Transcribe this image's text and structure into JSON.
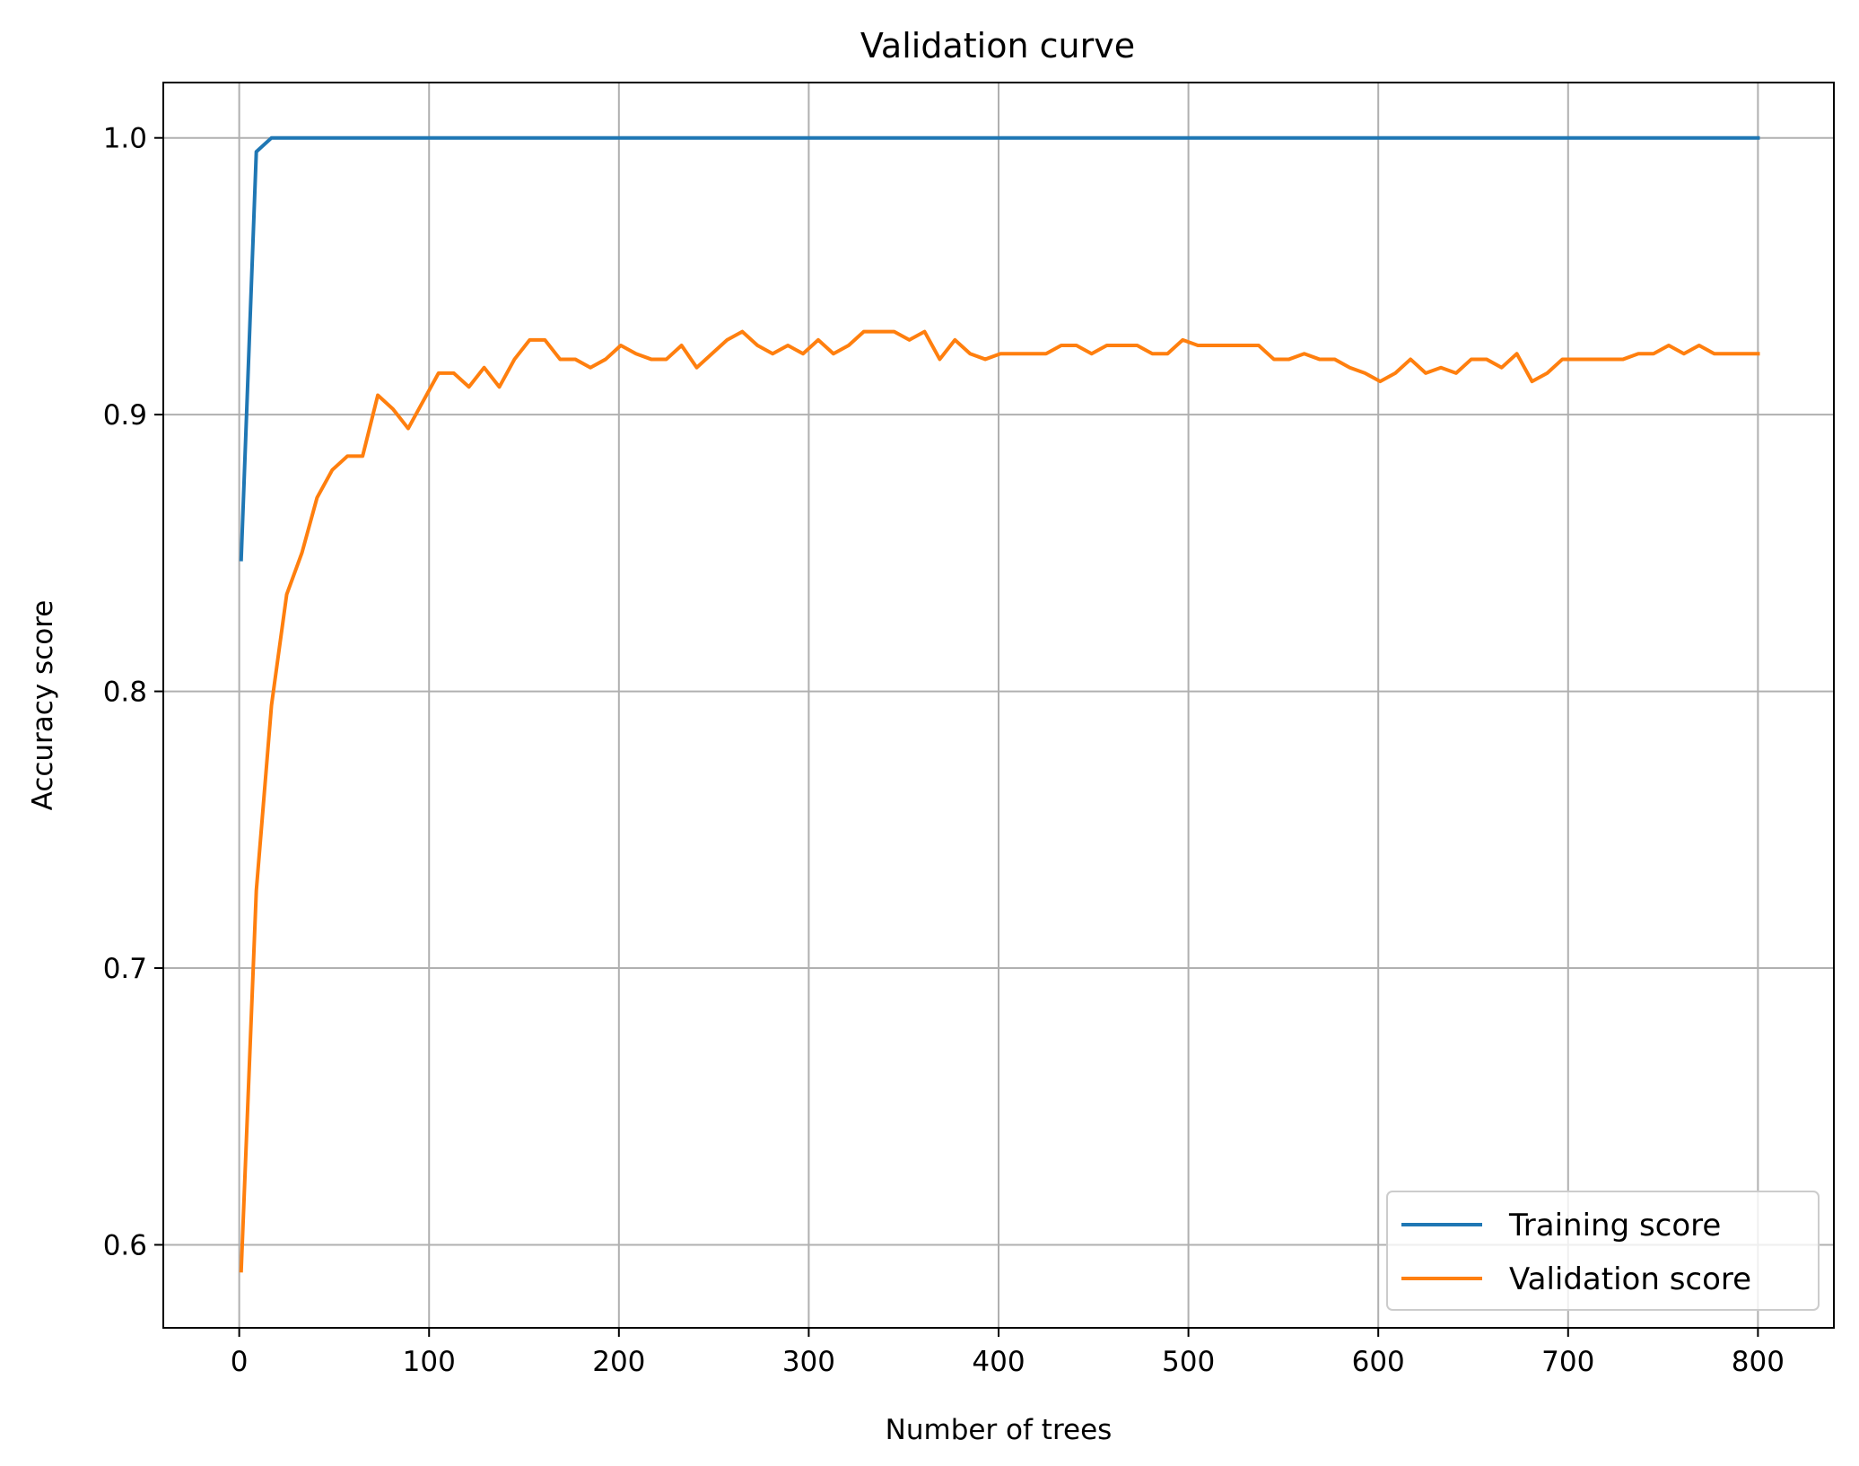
{
  "chart_data": {
    "type": "line",
    "title": "Validation curve",
    "xlabel": "Number of trees",
    "ylabel": "Accuracy score",
    "xlim": [
      -40,
      840
    ],
    "ylim": [
      0.57,
      1.02
    ],
    "xticks": [
      0,
      100,
      200,
      300,
      400,
      500,
      600,
      700,
      800
    ],
    "xtick_labels": [
      "0",
      "100",
      "200",
      "300",
      "400",
      "500",
      "600",
      "700",
      "800"
    ],
    "yticks": [
      0.6,
      0.7,
      0.8,
      0.9,
      1.0
    ],
    "ytick_labels": [
      "0.6",
      "0.7",
      "0.8",
      "0.9",
      "1.0"
    ],
    "grid": true,
    "legend_position": "bottom-right",
    "x": [
      1,
      9,
      17,
      25,
      33,
      41,
      49,
      57,
      65,
      73,
      81,
      89,
      97,
      105,
      113,
      121,
      129,
      137,
      145,
      153,
      161,
      169,
      177,
      185,
      193,
      201,
      209,
      217,
      225,
      233,
      241,
      249,
      257,
      265,
      273,
      281,
      289,
      297,
      305,
      313,
      321,
      329,
      337,
      345,
      353,
      361,
      369,
      377,
      385,
      393,
      401,
      409,
      417,
      425,
      433,
      441,
      449,
      457,
      465,
      473,
      481,
      489,
      497,
      505,
      513,
      521,
      529,
      537,
      545,
      553,
      561,
      569,
      577,
      585,
      593,
      601,
      609,
      617,
      625,
      633,
      641,
      649,
      657,
      665,
      673,
      681,
      689,
      697,
      705,
      713,
      721,
      729,
      737,
      745,
      753,
      761,
      769,
      777,
      785,
      793,
      801
    ],
    "series": [
      {
        "name": "Training score",
        "color": "#1f77b4",
        "values": [
          0.847,
          0.995,
          1.0,
          1.0,
          1.0,
          1.0,
          1.0,
          1.0,
          1.0,
          1.0,
          1.0,
          1.0,
          1.0,
          1.0,
          1.0,
          1.0,
          1.0,
          1.0,
          1.0,
          1.0,
          1.0,
          1.0,
          1.0,
          1.0,
          1.0,
          1.0,
          1.0,
          1.0,
          1.0,
          1.0,
          1.0,
          1.0,
          1.0,
          1.0,
          1.0,
          1.0,
          1.0,
          1.0,
          1.0,
          1.0,
          1.0,
          1.0,
          1.0,
          1.0,
          1.0,
          1.0,
          1.0,
          1.0,
          1.0,
          1.0,
          1.0,
          1.0,
          1.0,
          1.0,
          1.0,
          1.0,
          1.0,
          1.0,
          1.0,
          1.0,
          1.0,
          1.0,
          1.0,
          1.0,
          1.0,
          1.0,
          1.0,
          1.0,
          1.0,
          1.0,
          1.0,
          1.0,
          1.0,
          1.0,
          1.0,
          1.0,
          1.0,
          1.0,
          1.0,
          1.0,
          1.0,
          1.0,
          1.0,
          1.0,
          1.0,
          1.0,
          1.0,
          1.0,
          1.0,
          1.0,
          1.0,
          1.0,
          1.0,
          1.0,
          1.0,
          1.0,
          1.0,
          1.0,
          1.0,
          1.0,
          1.0
        ]
      },
      {
        "name": "Validation score",
        "color": "#ff7f0e",
        "values": [
          0.59,
          0.728,
          0.795,
          0.835,
          0.85,
          0.87,
          0.88,
          0.885,
          0.885,
          0.907,
          0.902,
          0.895,
          0.905,
          0.915,
          0.915,
          0.91,
          0.917,
          0.91,
          0.92,
          0.927,
          0.927,
          0.92,
          0.92,
          0.917,
          0.92,
          0.925,
          0.922,
          0.92,
          0.92,
          0.925,
          0.917,
          0.922,
          0.927,
          0.93,
          0.925,
          0.922,
          0.925,
          0.922,
          0.927,
          0.922,
          0.925,
          0.93,
          0.93,
          0.93,
          0.927,
          0.93,
          0.92,
          0.927,
          0.922,
          0.92,
          0.922,
          0.922,
          0.922,
          0.922,
          0.925,
          0.925,
          0.922,
          0.925,
          0.925,
          0.925,
          0.922,
          0.922,
          0.927,
          0.925,
          0.925,
          0.925,
          0.925,
          0.925,
          0.92,
          0.92,
          0.922,
          0.92,
          0.92,
          0.917,
          0.915,
          0.912,
          0.915,
          0.92,
          0.915,
          0.917,
          0.915,
          0.92,
          0.92,
          0.917,
          0.922,
          0.912,
          0.915,
          0.92,
          0.92,
          0.92,
          0.92,
          0.92,
          0.922,
          0.922,
          0.925,
          0.922,
          0.925,
          0.922,
          0.922,
          0.922,
          0.922
        ]
      }
    ]
  }
}
